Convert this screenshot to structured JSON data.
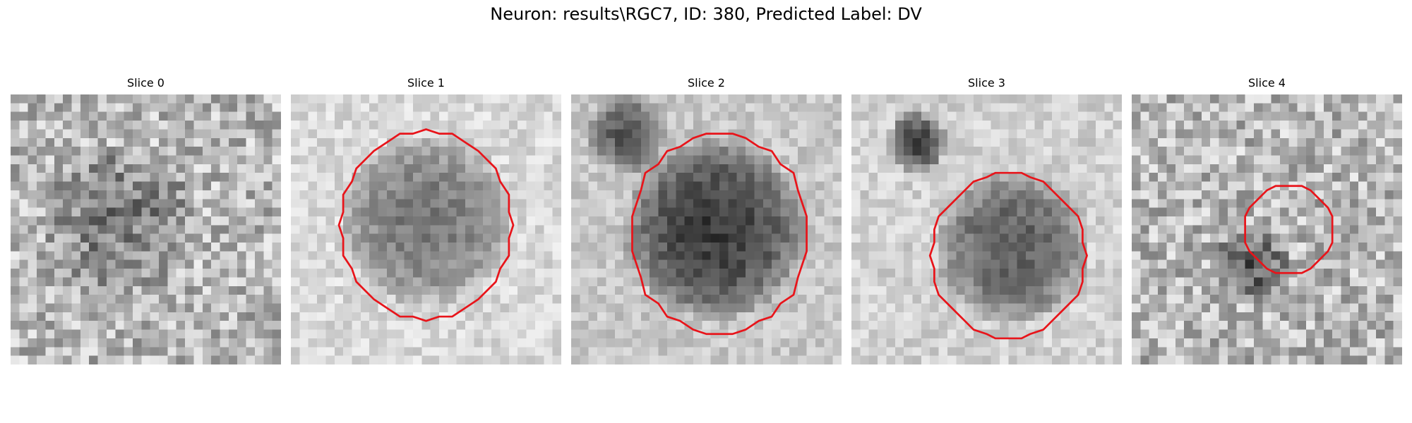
{
  "figure": {
    "title": "Neuron: results\\RGC7, ID: 380, Predicted Label: DV"
  },
  "colors": {
    "contour": "#e8141a",
    "background": "#ffffff"
  },
  "image_grid": {
    "rows": 31,
    "cols": 31
  },
  "panels": [
    {
      "title": "Slice 0",
      "blob": {
        "cx": 12,
        "cy": 14,
        "r": 9,
        "depth": 0.22
      },
      "extra_blobs": [],
      "base_brightness": 0.72,
      "noise": 0.22,
      "seed": 11,
      "contour": null
    },
    {
      "title": "Slice 1",
      "blob": {
        "cx": 15,
        "cy": 14,
        "r": 10,
        "depth": 0.38
      },
      "extra_blobs": [],
      "base_brightness": 0.85,
      "noise": 0.1,
      "seed": 23,
      "contour": {
        "cx": 15.5,
        "cy": 15,
        "rx": 9.8,
        "ry": 10.8
      }
    },
    {
      "title": "Slice 2",
      "blob": {
        "cx": 16,
        "cy": 15,
        "r": 10.5,
        "depth": 0.55
      },
      "extra_blobs": [
        {
          "cx": 6,
          "cy": 4,
          "r": 4.5,
          "depth": 0.45
        }
      ],
      "base_brightness": 0.78,
      "noise": 0.1,
      "seed": 37,
      "contour": {
        "cx": 17,
        "cy": 16,
        "rx": 10.2,
        "ry": 11.5
      }
    },
    {
      "title": "Slice 3",
      "blob": {
        "cx": 18,
        "cy": 17,
        "r": 9,
        "depth": 0.45
      },
      "extra_blobs": [
        {
          "cx": 7,
          "cy": 5,
          "r": 3.5,
          "depth": 0.55
        }
      ],
      "base_brightness": 0.82,
      "noise": 0.1,
      "seed": 49,
      "contour": {
        "cx": 18,
        "cy": 18.5,
        "rx": 8.8,
        "ry": 9.5
      }
    },
    {
      "title": "Slice 4",
      "blob": {
        "cx": 13,
        "cy": 19,
        "r": 4.5,
        "depth": 0.35
      },
      "extra_blobs": [],
      "base_brightness": 0.72,
      "noise": 0.22,
      "seed": 61,
      "contour": {
        "cx": 18,
        "cy": 15.5,
        "rx": 5,
        "ry": 5
      }
    }
  ]
}
